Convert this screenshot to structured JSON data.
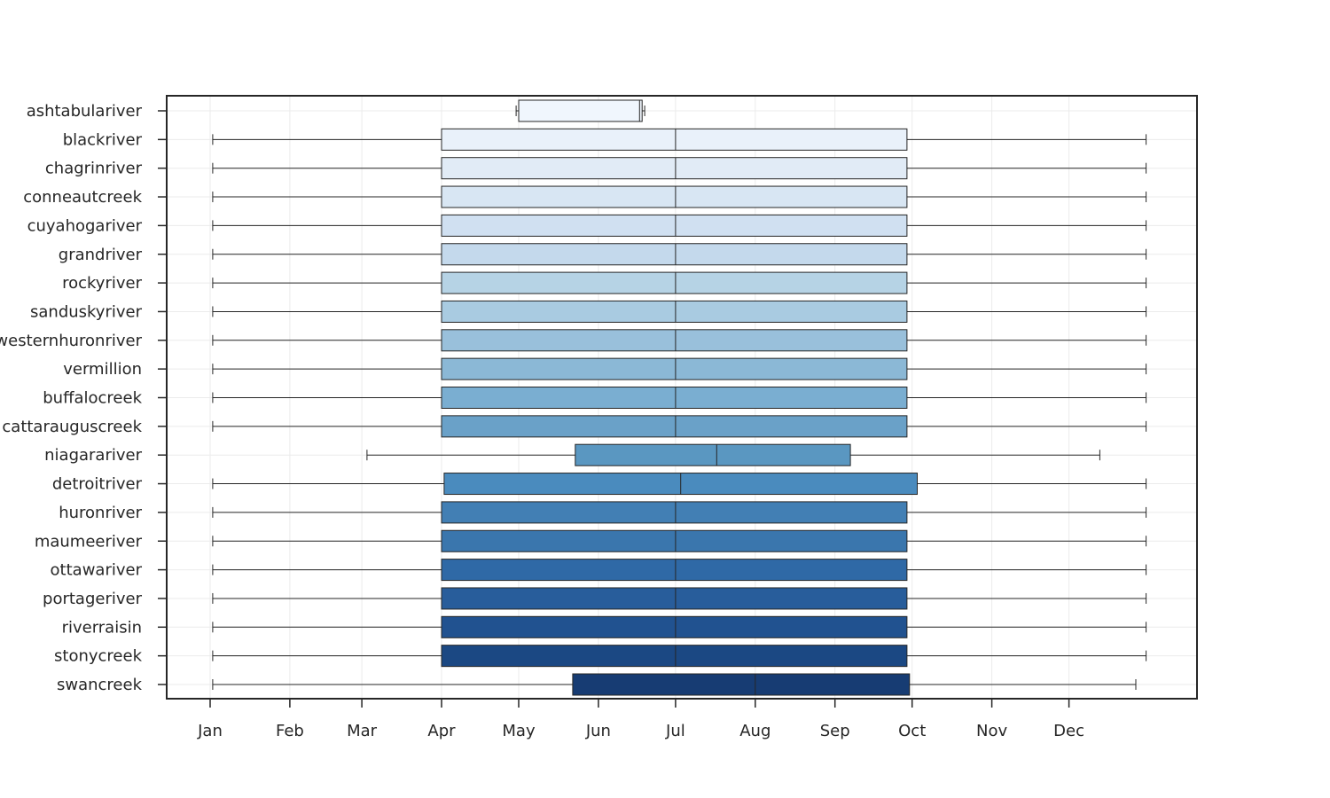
{
  "chart_data": {
    "type": "boxplot",
    "orientation": "horizontal",
    "title": "",
    "xlabel": "",
    "ylabel": "",
    "x_unit": "day of year",
    "xlim": [
      -5,
      372
    ],
    "x_ticks": [
      {
        "label": "Jan",
        "day": 1
      },
      {
        "label": "Feb",
        "day": 32
      },
      {
        "label": "Mar",
        "day": 60
      },
      {
        "label": "Apr",
        "day": 91
      },
      {
        "label": "May",
        "day": 121
      },
      {
        "label": "Jun",
        "day": 152
      },
      {
        "label": "Jul",
        "day": 182
      },
      {
        "label": "Aug",
        "day": 213
      },
      {
        "label": "Sep",
        "day": 244
      },
      {
        "label": "Oct",
        "day": 274
      },
      {
        "label": "Nov",
        "day": 305
      },
      {
        "label": "Dec",
        "day": 335
      }
    ],
    "grid": true,
    "color_scale": "Blues",
    "categories": [
      "ashtabulariver",
      "blackriver",
      "chagrinriver",
      "conneautcreek",
      "cuyahogariver",
      "grandriver",
      "rockyriver",
      "sanduskyriver",
      "westernhuronriver",
      "vermillion",
      "buffalocreek",
      "cattarauguscreek",
      "niagarariver",
      "detroitriver",
      "huronriver",
      "maumeeriver",
      "ottawariver",
      "portageriver",
      "riverraisin",
      "stonycreek",
      "swancreek"
    ],
    "boxes": [
      {
        "label": "ashtabulariver",
        "whisker_low": 120,
        "q1": 121,
        "median": 168,
        "q3": 169,
        "whisker_high": 170
      },
      {
        "label": "blackriver",
        "whisker_low": 2,
        "q1": 91,
        "median": 182,
        "q3": 272,
        "whisker_high": 365
      },
      {
        "label": "chagrinriver",
        "whisker_low": 2,
        "q1": 91,
        "median": 182,
        "q3": 272,
        "whisker_high": 365
      },
      {
        "label": "conneautcreek",
        "whisker_low": 2,
        "q1": 91,
        "median": 182,
        "q3": 272,
        "whisker_high": 365
      },
      {
        "label": "cuyahogariver",
        "whisker_low": 2,
        "q1": 91,
        "median": 182,
        "q3": 272,
        "whisker_high": 365
      },
      {
        "label": "grandriver",
        "whisker_low": 2,
        "q1": 91,
        "median": 182,
        "q3": 272,
        "whisker_high": 365
      },
      {
        "label": "rockyriver",
        "whisker_low": 2,
        "q1": 91,
        "median": 182,
        "q3": 272,
        "whisker_high": 365
      },
      {
        "label": "sanduskyriver",
        "whisker_low": 2,
        "q1": 91,
        "median": 182,
        "q3": 272,
        "whisker_high": 365
      },
      {
        "label": "westernhuronriver",
        "whisker_low": 2,
        "q1": 91,
        "median": 182,
        "q3": 272,
        "whisker_high": 365
      },
      {
        "label": "vermillion",
        "whisker_low": 2,
        "q1": 91,
        "median": 182,
        "q3": 272,
        "whisker_high": 365
      },
      {
        "label": "buffalocreek",
        "whisker_low": 2,
        "q1": 91,
        "median": 182,
        "q3": 272,
        "whisker_high": 365
      },
      {
        "label": "cattarauguscreek",
        "whisker_low": 2,
        "q1": 91,
        "median": 182,
        "q3": 272,
        "whisker_high": 365
      },
      {
        "label": "niagarariver",
        "whisker_low": 62,
        "q1": 143,
        "median": 198,
        "q3": 250,
        "whisker_high": 347
      },
      {
        "label": "detroitriver",
        "whisker_low": 2,
        "q1": 92,
        "median": 184,
        "q3": 276,
        "whisker_high": 365
      },
      {
        "label": "huronriver",
        "whisker_low": 2,
        "q1": 91,
        "median": 182,
        "q3": 272,
        "whisker_high": 365
      },
      {
        "label": "maumeeriver",
        "whisker_low": 2,
        "q1": 91,
        "median": 182,
        "q3": 272,
        "whisker_high": 365
      },
      {
        "label": "ottawariver",
        "whisker_low": 2,
        "q1": 91,
        "median": 182,
        "q3": 272,
        "whisker_high": 365
      },
      {
        "label": "portageriver",
        "whisker_low": 2,
        "q1": 91,
        "median": 182,
        "q3": 272,
        "whisker_high": 365
      },
      {
        "label": "riverraisin",
        "whisker_low": 2,
        "q1": 91,
        "median": 182,
        "q3": 272,
        "whisker_high": 365
      },
      {
        "label": "stonycreek",
        "whisker_low": 2,
        "q1": 91,
        "median": 182,
        "q3": 272,
        "whisker_high": 365
      },
      {
        "label": "swancreek",
        "whisker_low": 2,
        "q1": 142,
        "median": 213,
        "q3": 273,
        "whisker_high": 361
      }
    ],
    "colors": [
      "#f0f6fd",
      "#e9f1fa",
      "#e1ebf6",
      "#d8e6f3",
      "#d0e0f1",
      "#c4d9ec",
      "#b6d3e5",
      "#a9cbe1",
      "#99c0db",
      "#8bb8d6",
      "#7aaed1",
      "#6aa1c8",
      "#5a97c1",
      "#4a8bbe",
      "#427fb4",
      "#3a76ad",
      "#2f69a6",
      "#285d9b",
      "#215290",
      "#1b4883",
      "#173c73"
    ]
  }
}
